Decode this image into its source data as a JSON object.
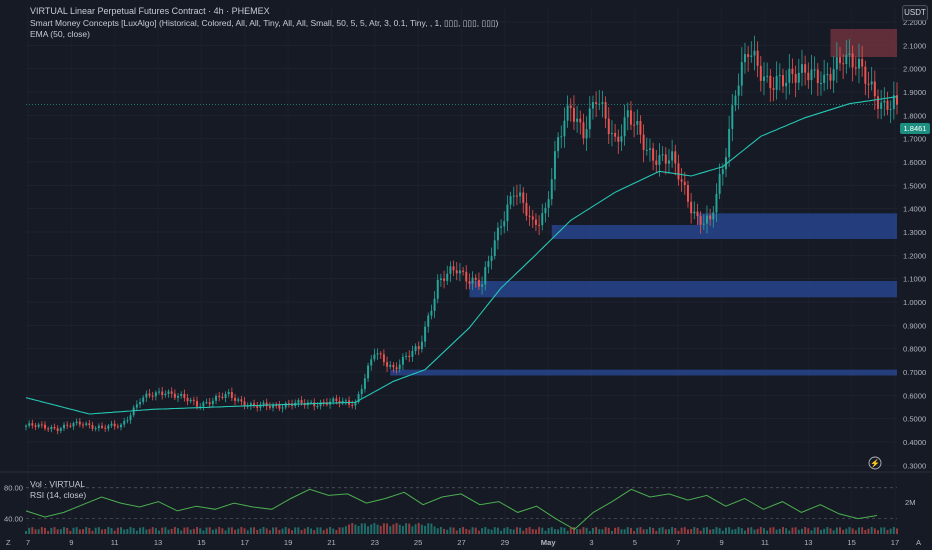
{
  "header": {
    "title": "VIRTUAL Linear Perpetual Futures Contract · 4h · PHEMEX",
    "indicator_smc": "Smart Money Concepts [LuxAlgo] (Historical, Colored, All, All, Tiny, All, All, Small, 50, 5, 5, Atr, 3, 0.1, Tiny, , 1, ▯▯▯, ▯▯▯, ▯▯▯)",
    "indicator_ema": "EMA (50, close)",
    "currency_badge": "USDT"
  },
  "lower_pane": {
    "vol_label": "Vol · VIRTUAL",
    "rsi_label": "RSI (14, close)",
    "rsi_levels": [
      "80.00",
      "40.00"
    ],
    "volume_tick": "2M"
  },
  "footer": {
    "left_marker": "Z",
    "right_marker": "A"
  },
  "colors": {
    "background": "#161a25",
    "up_candle": "#26a69a",
    "down_candle": "#ef5350",
    "ema_line": "#26c6b3",
    "demand_zone": "#2a4a9a",
    "supply_zone": "#7a3540",
    "rsi_line": "#4caf50"
  },
  "chart_data": {
    "type": "candlestick",
    "symbol": "VIRTUAL",
    "exchange": "PHEMEX",
    "timeframe": "4h",
    "ylim": [
      0.28,
      2.26
    ],
    "y_ticks": [
      "2.2000",
      "2.1000",
      "2.0000",
      "1.9000",
      "1.8000",
      "1.7000",
      "1.6000",
      "1.5000",
      "1.4000",
      "1.3000",
      "1.2000",
      "1.1000",
      "1.0000",
      "0.9000",
      "0.8000",
      "0.7000",
      "0.6000",
      "0.5000",
      "0.4000",
      "0.3000"
    ],
    "x_ticks": [
      "7",
      "9",
      "11",
      "13",
      "15",
      "17",
      "19",
      "21",
      "23",
      "25",
      "27",
      "29",
      "May",
      "3",
      "5",
      "7",
      "9",
      "11",
      "13",
      "15",
      "17"
    ],
    "last_price": "1.8461",
    "close_path": [
      {
        "x": 0,
        "y": 0.47
      },
      {
        "x": 10,
        "y": 0.46
      },
      {
        "x": 18,
        "y": 0.48
      },
      {
        "x": 24,
        "y": 0.46
      },
      {
        "x": 30,
        "y": 0.47
      },
      {
        "x": 36,
        "y": 0.58
      },
      {
        "x": 44,
        "y": 0.62
      },
      {
        "x": 54,
        "y": 0.56
      },
      {
        "x": 64,
        "y": 0.6
      },
      {
        "x": 72,
        "y": 0.55
      },
      {
        "x": 82,
        "y": 0.56
      },
      {
        "x": 96,
        "y": 0.57
      },
      {
        "x": 104,
        "y": 0.57
      },
      {
        "x": 110,
        "y": 0.78
      },
      {
        "x": 116,
        "y": 0.72
      },
      {
        "x": 124,
        "y": 0.8
      },
      {
        "x": 130,
        "y": 1.08
      },
      {
        "x": 136,
        "y": 1.14
      },
      {
        "x": 144,
        "y": 1.07
      },
      {
        "x": 150,
        "y": 1.35
      },
      {
        "x": 154,
        "y": 1.48
      },
      {
        "x": 160,
        "y": 1.33
      },
      {
        "x": 164,
        "y": 1.4
      },
      {
        "x": 168,
        "y": 1.68
      },
      {
        "x": 172,
        "y": 1.84
      },
      {
        "x": 176,
        "y": 1.74
      },
      {
        "x": 180,
        "y": 1.86
      },
      {
        "x": 186,
        "y": 1.7
      },
      {
        "x": 190,
        "y": 1.8
      },
      {
        "x": 196,
        "y": 1.65
      },
      {
        "x": 204,
        "y": 1.6
      },
      {
        "x": 208,
        "y": 1.48
      },
      {
        "x": 212,
        "y": 1.36
      },
      {
        "x": 216,
        "y": 1.33
      },
      {
        "x": 220,
        "y": 1.58
      },
      {
        "x": 224,
        "y": 1.92
      },
      {
        "x": 228,
        "y": 2.06
      },
      {
        "x": 234,
        "y": 1.96
      },
      {
        "x": 240,
        "y": 1.93
      },
      {
        "x": 246,
        "y": 2.02
      },
      {
        "x": 252,
        "y": 1.92
      },
      {
        "x": 258,
        "y": 2.08
      },
      {
        "x": 262,
        "y": 2.01
      },
      {
        "x": 266,
        "y": 1.93
      },
      {
        "x": 271,
        "y": 1.85
      },
      {
        "x": 275,
        "y": 1.8461
      }
    ],
    "ema_50": [
      {
        "x": 0,
        "y": 0.59
      },
      {
        "x": 20,
        "y": 0.52
      },
      {
        "x": 40,
        "y": 0.54
      },
      {
        "x": 80,
        "y": 0.56
      },
      {
        "x": 104,
        "y": 0.57
      },
      {
        "x": 116,
        "y": 0.66
      },
      {
        "x": 126,
        "y": 0.71
      },
      {
        "x": 140,
        "y": 0.89
      },
      {
        "x": 150,
        "y": 1.06
      },
      {
        "x": 160,
        "y": 1.19
      },
      {
        "x": 172,
        "y": 1.35
      },
      {
        "x": 186,
        "y": 1.47
      },
      {
        "x": 200,
        "y": 1.56
      },
      {
        "x": 210,
        "y": 1.54
      },
      {
        "x": 220,
        "y": 1.58
      },
      {
        "x": 232,
        "y": 1.71
      },
      {
        "x": 246,
        "y": 1.79
      },
      {
        "x": 260,
        "y": 1.85
      },
      {
        "x": 275,
        "y": 1.88
      }
    ],
    "zones": [
      {
        "kind": "demand",
        "x_start": 115,
        "x_end": 275,
        "low": 0.685,
        "high": 0.71
      },
      {
        "kind": "demand",
        "x_start": 140,
        "x_end": 275,
        "low": 1.02,
        "high": 1.09
      },
      {
        "kind": "demand",
        "x_start": 166,
        "x_end": 275,
        "low": 1.27,
        "high": 1.33
      },
      {
        "kind": "demand",
        "x_start": 212,
        "x_end": 275,
        "low": 1.33,
        "high": 1.38
      },
      {
        "kind": "supply",
        "x_start": 254,
        "x_end": 275,
        "low": 2.05,
        "high": 2.17
      }
    ],
    "rsi_14": [
      50,
      42,
      48,
      58,
      68,
      60,
      55,
      62,
      50,
      56,
      52,
      60,
      55,
      52,
      66,
      78,
      70,
      72,
      60,
      66,
      74,
      58,
      68,
      72,
      58,
      62,
      48,
      56,
      40,
      26,
      48,
      62,
      78,
      68,
      72,
      64,
      70,
      56,
      66,
      52,
      62,
      48,
      58,
      46,
      40,
      44
    ]
  }
}
